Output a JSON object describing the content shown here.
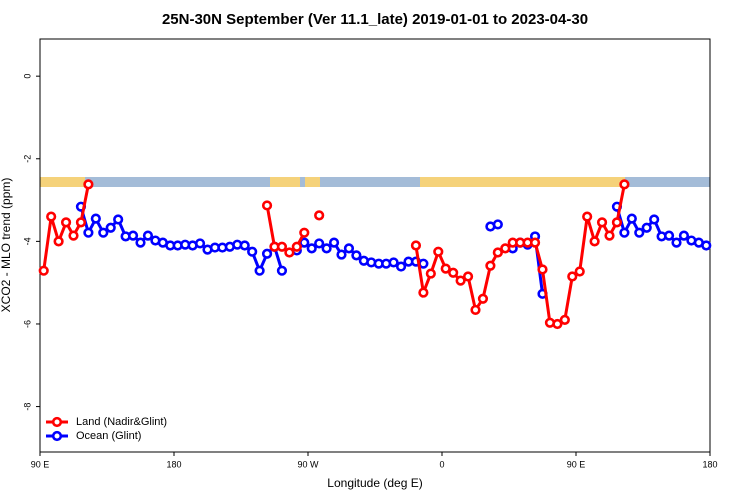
{
  "chart_data": {
    "type": "line",
    "title": "25N-30N September (Ver 11.1_late)   2019-01-01 to 2023-04-30",
    "xlabel": "Longitude (deg E)",
    "ylabel": "XCO2 - MLO trend (ppm)",
    "x": [
      92.5,
      97.5,
      102.5,
      107.5,
      112.5,
      117.5,
      122.5,
      127.5,
      132.5,
      137.5,
      142.5,
      147.5,
      152.5,
      157.5,
      162.5,
      167.5,
      172.5,
      177.5,
      182.5,
      187.5,
      192.5,
      197.5,
      202.5,
      207.5,
      212.5,
      217.5,
      222.5,
      227.5,
      232.5,
      237.5,
      242.5,
      247.5,
      252.5,
      257.5,
      262.5,
      267.5,
      272.5,
      277.5,
      282.5,
      287.5,
      292.5,
      297.5,
      302.5,
      307.5,
      312.5,
      317.5,
      322.5,
      327.5,
      332.5,
      337.5,
      342.5,
      347.5,
      352.5,
      357.5,
      362.5,
      367.5,
      372.5,
      377.5,
      382.5,
      387.5,
      392.5,
      397.5,
      402.5,
      407.5,
      412.5,
      417.5,
      422.5,
      427.5,
      432.5,
      437.5,
      442.5,
      447.5,
      452.5,
      457.5,
      462.5,
      467.5,
      472.5,
      477.5,
      482.5,
      487.5,
      492.5,
      497.5,
      502.5,
      507.5,
      512.5,
      517.5,
      522.5,
      527.5,
      532.5,
      537.5
    ],
    "series": [
      {
        "name": "Land (Nadir&Glint)",
        "color": "#ff0000",
        "values": [
          -4.71,
          -3.4,
          -4.0,
          -3.54,
          -3.86,
          -3.54,
          -2.62,
          null,
          null,
          null,
          null,
          null,
          null,
          null,
          null,
          null,
          null,
          null,
          null,
          null,
          null,
          null,
          null,
          null,
          null,
          null,
          null,
          null,
          null,
          null,
          -3.13,
          -4.13,
          -4.13,
          -4.27,
          -4.13,
          -3.79,
          null,
          -3.37,
          null,
          null,
          null,
          null,
          null,
          null,
          null,
          null,
          null,
          null,
          null,
          null,
          -4.1,
          -5.24,
          -4.78,
          -4.25,
          -4.66,
          -4.76,
          -4.95,
          -4.85,
          -5.66,
          -5.39,
          -4.59,
          -4.27,
          -4.17,
          -4.03,
          -4.03,
          -4.03,
          -4.03,
          -4.68,
          -5.97,
          -6.0,
          -5.9,
          -4.85,
          -4.73,
          -3.4,
          -4.0,
          -3.54,
          -3.86,
          -3.54,
          -2.62,
          null,
          null,
          null,
          null,
          null,
          null,
          null,
          null,
          null,
          null,
          null
        ]
      },
      {
        "name": "Ocean (Glint)",
        "color": "#0000ff",
        "values": [
          null,
          null,
          null,
          null,
          null,
          -3.16,
          -3.79,
          -3.45,
          -3.79,
          -3.67,
          -3.47,
          -3.88,
          -3.86,
          -4.03,
          -3.86,
          -3.98,
          -4.03,
          -4.1,
          -4.1,
          -4.08,
          -4.1,
          -4.05,
          -4.2,
          -4.15,
          -4.15,
          -4.13,
          -4.08,
          -4.1,
          -4.25,
          -4.71,
          -4.3,
          -4.13,
          -4.71,
          null,
          -4.22,
          -4.03,
          -4.17,
          -4.05,
          -4.17,
          -4.03,
          -4.32,
          -4.17,
          -4.34,
          -4.47,
          -4.51,
          -4.54,
          -4.54,
          -4.51,
          -4.61,
          -4.49,
          -4.49,
          -4.54,
          null,
          null,
          null,
          null,
          null,
          null,
          null,
          null,
          -3.64,
          -3.59,
          null,
          -4.17,
          -4.03,
          -4.08,
          -3.88,
          -5.27,
          null,
          null,
          null,
          null,
          null,
          null,
          null,
          null,
          null,
          -3.16,
          -3.79,
          -3.45,
          -3.79,
          -3.67,
          -3.47,
          -3.88,
          -3.86,
          -4.03,
          -3.86,
          -3.98,
          -4.03,
          -4.1
        ]
      }
    ],
    "xlim": [
      90,
      540
    ],
    "xticks": [
      {
        "value": 90,
        "label": "90 E"
      },
      180,
      {
        "value": 270,
        "label": "90 W"
      },
      {
        "value": 360,
        "label": "0"
      },
      {
        "value": 450,
        "label": "90 E"
      },
      {
        "value": 540,
        "label": "180"
      }
    ],
    "ylim": [
      -9.1,
      0.9
    ],
    "yticks": [
      0,
      -2,
      -4,
      -6,
      -8
    ],
    "legend": "bottom-left"
  }
}
